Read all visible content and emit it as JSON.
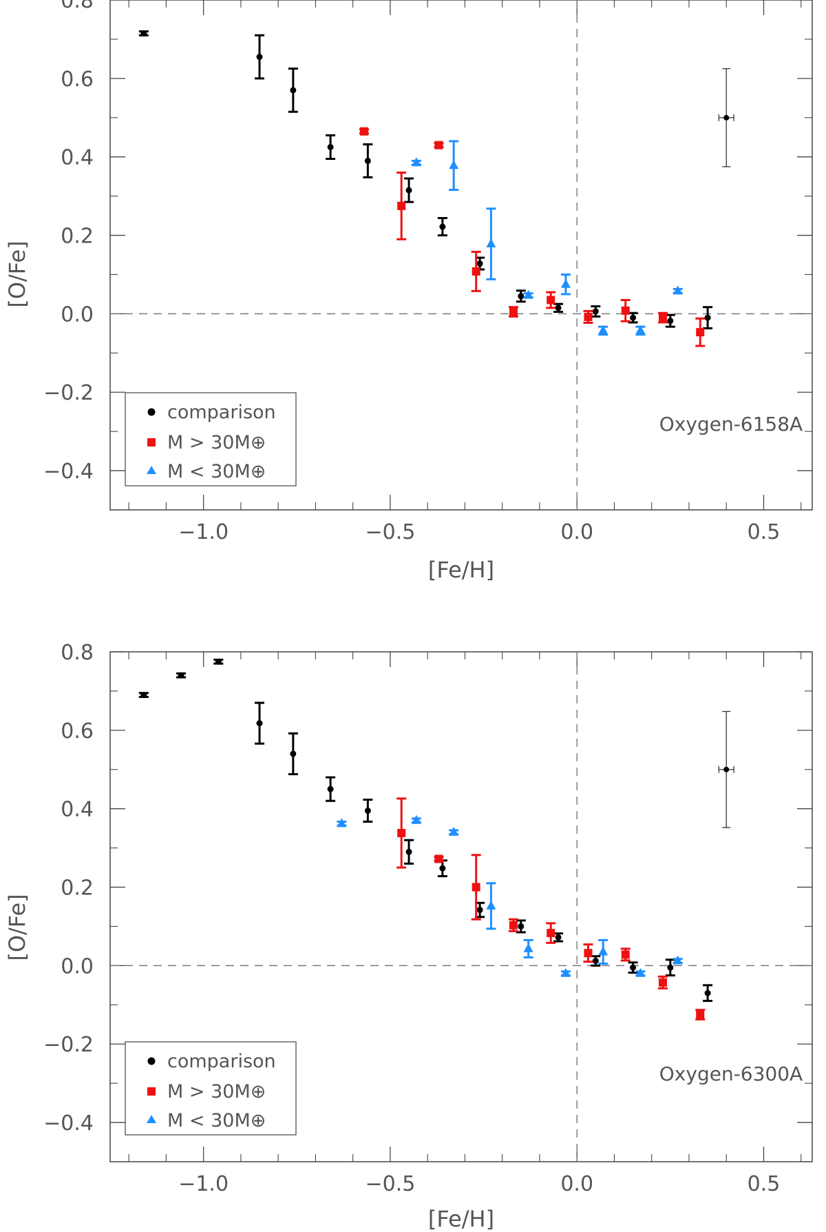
{
  "colors": {
    "comparison": "#000000",
    "high_mass": "#ee1111",
    "low_mass": "#1f8fff",
    "axis": "#444444",
    "reference": "#777777"
  },
  "chart_data": [
    {
      "type": "scatter",
      "title": "",
      "annotation": "Oxygen-6158A",
      "xlabel": "[Fe/H]",
      "ylabel": "[O/Fe]",
      "xlim": [
        -1.25,
        0.63
      ],
      "ylim": [
        -0.5,
        0.8
      ],
      "xticks": [
        -1.0,
        -0.5,
        0.0,
        0.5
      ],
      "xtick_labels": [
        "−1.0",
        "−0.5",
        "0.0",
        "0.5"
      ],
      "yticks": [
        -0.4,
        -0.2,
        0.0,
        0.2,
        0.4,
        0.6,
        0.8
      ],
      "ytick_labels": [
        "−0.4",
        "−0.2",
        "0.0",
        "0.2",
        "0.4",
        "0.6",
        "0.8"
      ],
      "legend_position": "bottom-left",
      "legend": [
        "comparison",
        "M > 30M⊕",
        "M < 30M⊕"
      ],
      "reference_lines": {
        "x": 0.0,
        "y": 0.0
      },
      "typical_error": {
        "x": 0.4,
        "y": 0.5,
        "xerr": 0.02,
        "yerr": 0.125
      },
      "series": [
        {
          "name": "comparison",
          "marker": "circle",
          "points": [
            {
              "x": -1.16,
              "y": 0.715,
              "yerr": 0.005
            },
            {
              "x": -0.85,
              "y": 0.655,
              "yerr": 0.055
            },
            {
              "x": -0.76,
              "y": 0.57,
              "yerr": 0.055
            },
            {
              "x": -0.66,
              "y": 0.425,
              "yerr": 0.03
            },
            {
              "x": -0.56,
              "y": 0.39,
              "yerr": 0.042
            },
            {
              "x": -0.45,
              "y": 0.315,
              "yerr": 0.03
            },
            {
              "x": -0.36,
              "y": 0.222,
              "yerr": 0.022
            },
            {
              "x": -0.26,
              "y": 0.128,
              "yerr": 0.015
            },
            {
              "x": -0.15,
              "y": 0.045,
              "yerr": 0.014
            },
            {
              "x": -0.05,
              "y": 0.015,
              "yerr": 0.01
            },
            {
              "x": 0.05,
              "y": 0.006,
              "yerr": 0.013
            },
            {
              "x": 0.15,
              "y": -0.01,
              "yerr": 0.012
            },
            {
              "x": 0.25,
              "y": -0.018,
              "yerr": 0.015
            },
            {
              "x": 0.35,
              "y": -0.01,
              "yerr": 0.027
            }
          ]
        },
        {
          "name": "M > 30M⊕",
          "marker": "square",
          "points": [
            {
              "x": -0.57,
              "y": 0.465,
              "yerr": 0.005
            },
            {
              "x": -0.47,
              "y": 0.275,
              "yerr": 0.085
            },
            {
              "x": -0.37,
              "y": 0.43,
              "yerr": 0.005
            },
            {
              "x": -0.27,
              "y": 0.108,
              "yerr": 0.05
            },
            {
              "x": -0.17,
              "y": 0.005,
              "yerr": 0.012
            },
            {
              "x": -0.07,
              "y": 0.035,
              "yerr": 0.02
            },
            {
              "x": 0.03,
              "y": -0.008,
              "yerr": 0.015
            },
            {
              "x": 0.13,
              "y": 0.008,
              "yerr": 0.027
            },
            {
              "x": 0.23,
              "y": -0.01,
              "yerr": 0.012
            },
            {
              "x": 0.33,
              "y": -0.047,
              "yerr": 0.035
            }
          ]
        },
        {
          "name": "M < 30M⊕",
          "marker": "triangle",
          "points": [
            {
              "x": -0.43,
              "y": 0.385,
              "yerr": 0.005
            },
            {
              "x": -0.33,
              "y": 0.378,
              "yerr": 0.062
            },
            {
              "x": -0.23,
              "y": 0.178,
              "yerr": 0.09
            },
            {
              "x": -0.13,
              "y": 0.047,
              "yerr": 0.005
            },
            {
              "x": -0.03,
              "y": 0.075,
              "yerr": 0.025
            },
            {
              "x": 0.07,
              "y": -0.043,
              "yerr": 0.01
            },
            {
              "x": 0.17,
              "y": -0.043,
              "yerr": 0.01
            },
            {
              "x": 0.27,
              "y": 0.058,
              "yerr": 0.005
            }
          ]
        }
      ]
    },
    {
      "type": "scatter",
      "title": "",
      "annotation": "Oxygen-6300A",
      "xlabel": "[Fe/H]",
      "ylabel": "[O/Fe]",
      "xlim": [
        -1.25,
        0.63
      ],
      "ylim": [
        -0.5,
        0.8
      ],
      "xticks": [
        -1.0,
        -0.5,
        0.0,
        0.5
      ],
      "xtick_labels": [
        "−1.0",
        "−0.5",
        "0.0",
        "0.5"
      ],
      "yticks": [
        -0.4,
        -0.2,
        0.0,
        0.2,
        0.4,
        0.6,
        0.8
      ],
      "ytick_labels": [
        "−0.4",
        "−0.2",
        "0.0",
        "0.2",
        "0.4",
        "0.6",
        "0.8"
      ],
      "legend_position": "bottom-left",
      "legend": [
        "comparison",
        "M > 30M⊕",
        "M < 30M⊕"
      ],
      "reference_lines": {
        "x": 0.0,
        "y": 0.0
      },
      "typical_error": {
        "x": 0.4,
        "y": 0.5,
        "xerr": 0.02,
        "yerr": 0.148
      },
      "series": [
        {
          "name": "comparison",
          "marker": "circle",
          "points": [
            {
              "x": -1.16,
              "y": 0.69,
              "yerr": 0.005
            },
            {
              "x": -1.06,
              "y": 0.74,
              "yerr": 0.005
            },
            {
              "x": -0.96,
              "y": 0.775,
              "yerr": 0.005
            },
            {
              "x": -0.85,
              "y": 0.618,
              "yerr": 0.052
            },
            {
              "x": -0.76,
              "y": 0.54,
              "yerr": 0.052
            },
            {
              "x": -0.66,
              "y": 0.45,
              "yerr": 0.03
            },
            {
              "x": -0.56,
              "y": 0.395,
              "yerr": 0.028
            },
            {
              "x": -0.45,
              "y": 0.29,
              "yerr": 0.03
            },
            {
              "x": -0.36,
              "y": 0.248,
              "yerr": 0.02
            },
            {
              "x": -0.26,
              "y": 0.142,
              "yerr": 0.018
            },
            {
              "x": -0.15,
              "y": 0.1,
              "yerr": 0.015
            },
            {
              "x": -0.05,
              "y": 0.072,
              "yerr": 0.01
            },
            {
              "x": 0.05,
              "y": 0.012,
              "yerr": 0.012
            },
            {
              "x": 0.15,
              "y": -0.005,
              "yerr": 0.013
            },
            {
              "x": 0.25,
              "y": -0.005,
              "yerr": 0.02
            },
            {
              "x": 0.35,
              "y": -0.07,
              "yerr": 0.02
            }
          ]
        },
        {
          "name": "M > 30M⊕",
          "marker": "square",
          "points": [
            {
              "x": -0.47,
              "y": 0.338,
              "yerr": 0.088
            },
            {
              "x": -0.37,
              "y": 0.272,
              "yerr": 0.005
            },
            {
              "x": -0.27,
              "y": 0.2,
              "yerr": 0.082
            },
            {
              "x": -0.17,
              "y": 0.103,
              "yerr": 0.015
            },
            {
              "x": -0.07,
              "y": 0.083,
              "yerr": 0.025
            },
            {
              "x": 0.03,
              "y": 0.032,
              "yerr": 0.022
            },
            {
              "x": 0.13,
              "y": 0.028,
              "yerr": 0.015
            },
            {
              "x": 0.23,
              "y": -0.043,
              "yerr": 0.015
            },
            {
              "x": 0.33,
              "y": -0.125,
              "yerr": 0.012
            }
          ]
        },
        {
          "name": "M < 30M⊕",
          "marker": "triangle",
          "points": [
            {
              "x": -0.63,
              "y": 0.362,
              "yerr": 0.005
            },
            {
              "x": -0.43,
              "y": 0.37,
              "yerr": 0.005
            },
            {
              "x": -0.33,
              "y": 0.34,
              "yerr": 0.005
            },
            {
              "x": -0.23,
              "y": 0.152,
              "yerr": 0.058
            },
            {
              "x": -0.13,
              "y": 0.043,
              "yerr": 0.022
            },
            {
              "x": -0.03,
              "y": -0.02,
              "yerr": 0.005
            },
            {
              "x": 0.07,
              "y": 0.035,
              "yerr": 0.03
            },
            {
              "x": 0.17,
              "y": -0.02,
              "yerr": 0.005
            },
            {
              "x": 0.27,
              "y": 0.012,
              "yerr": 0.005
            }
          ]
        }
      ]
    }
  ]
}
